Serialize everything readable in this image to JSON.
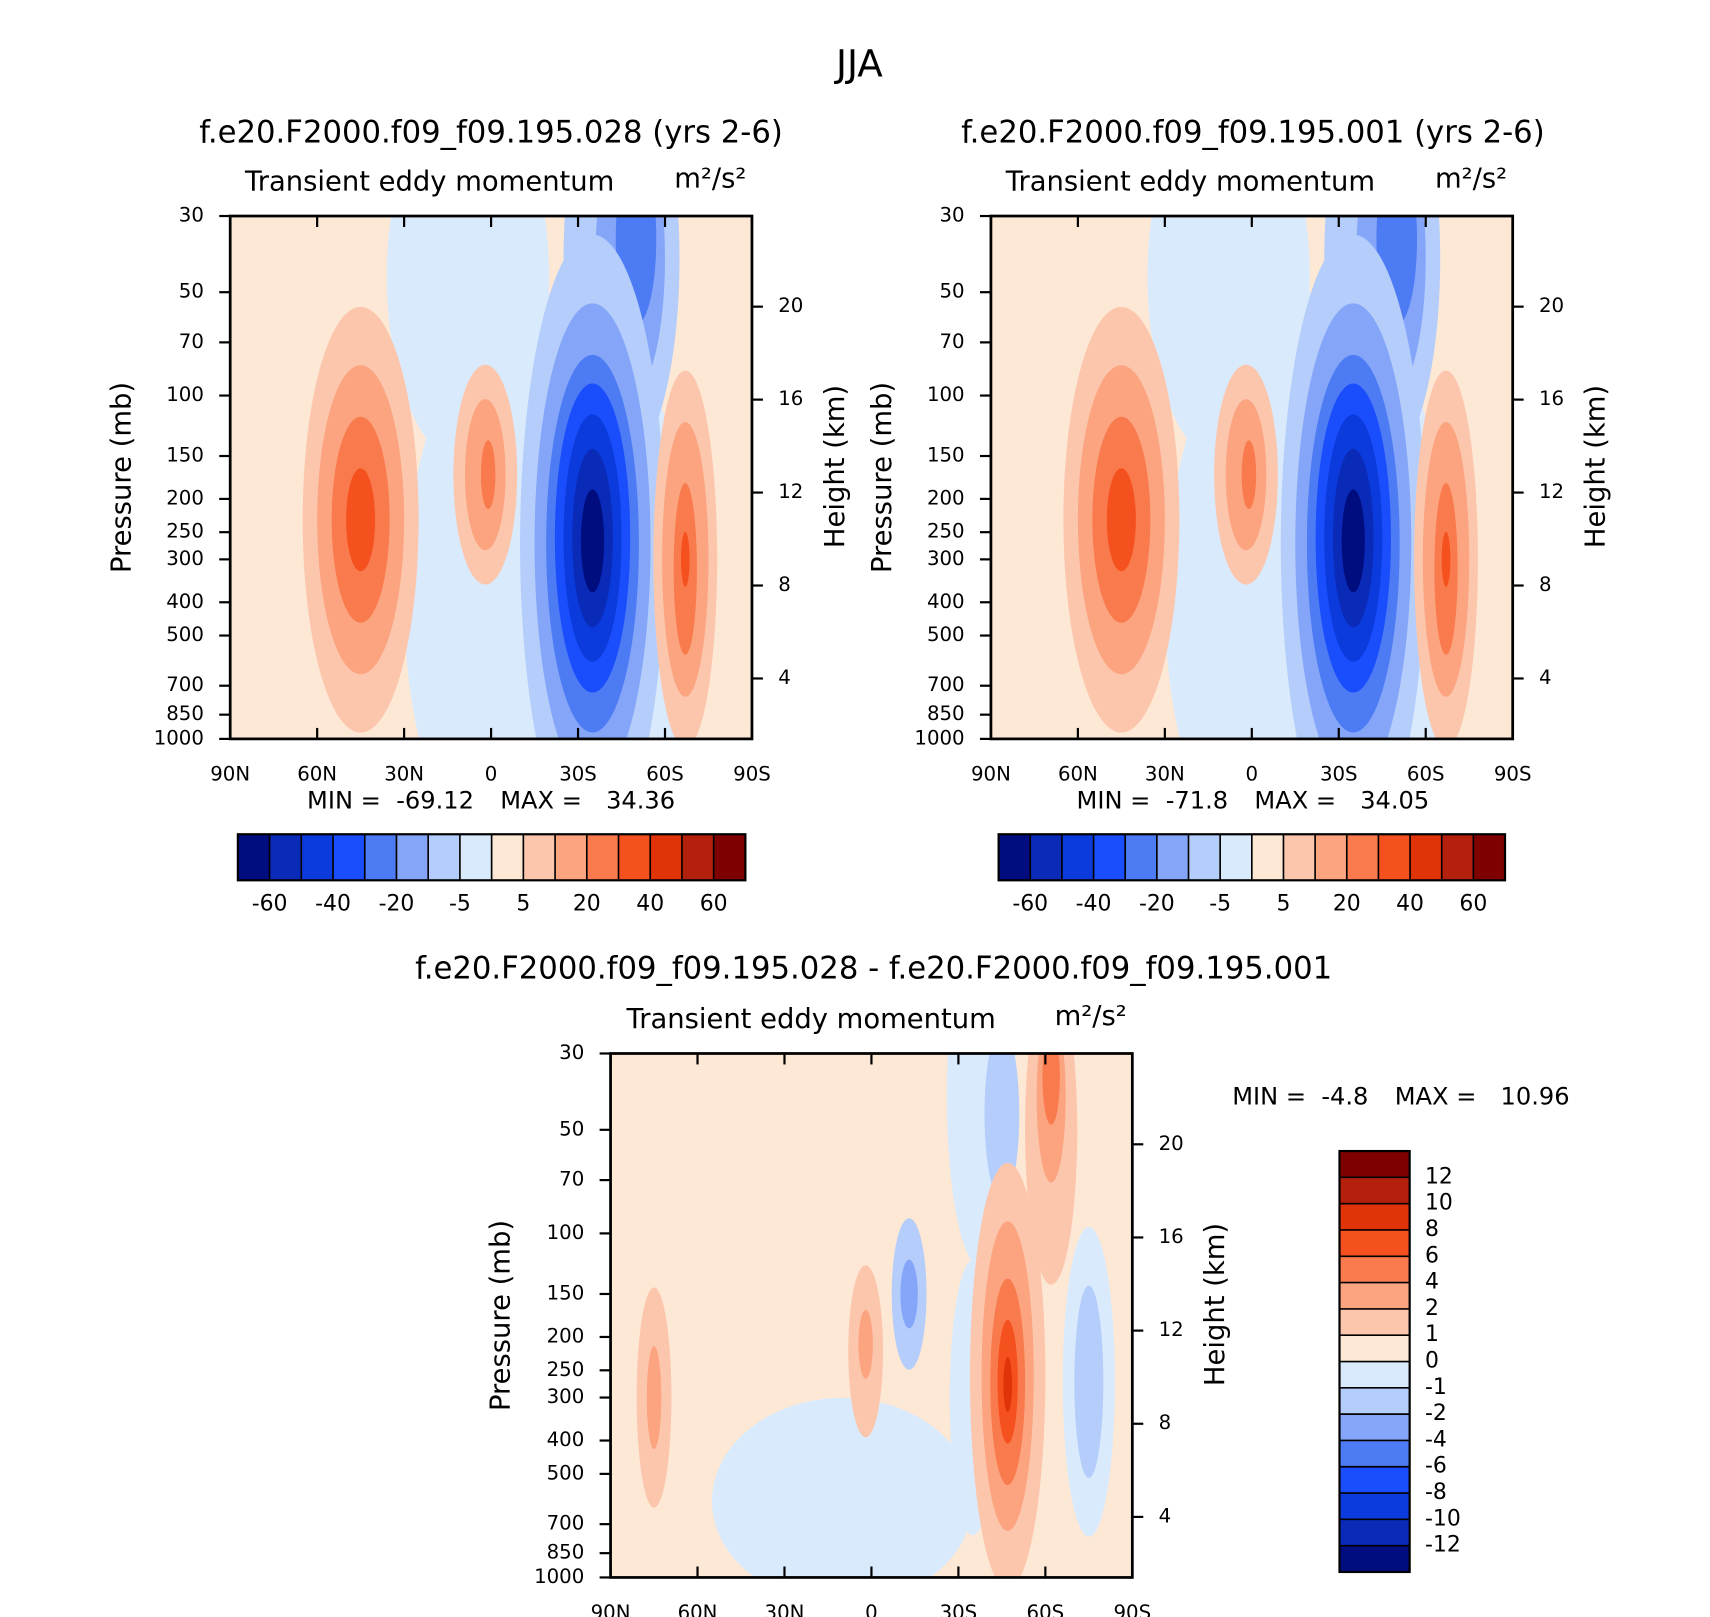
{
  "title": "JJA",
  "chart_data": [
    {
      "type": "contour",
      "title": "f.e20.F2000.f09_f09.195.028 (yrs 2-6)",
      "subtitle": "Transient eddy momentum",
      "units": "m²/s²",
      "ylabel": "Pressure (mb)",
      "y2label": "Height (km)",
      "xlim": [
        90,
        -90
      ],
      "xticks": [
        {
          "value": 90,
          "label": "90N"
        },
        {
          "value": 60,
          "label": "60N"
        },
        {
          "value": 30,
          "label": "30N"
        },
        0,
        {
          "value": -30,
          "label": "30S"
        },
        {
          "value": -60,
          "label": "60S"
        },
        {
          "value": -90,
          "label": "90S"
        }
      ],
      "ylim": [
        1000,
        30
      ],
      "ylog": true,
      "yticks": [
        30,
        50,
        70,
        100,
        150,
        200,
        250,
        300,
        400,
        500,
        700,
        850,
        1000
      ],
      "y2lim": [
        1.4,
        23.9
      ],
      "y2ticks": [
        4,
        8,
        12,
        16,
        20
      ],
      "min_label": "MIN =",
      "min": -69.12,
      "max_label": "MAX =",
      "max": 34.36,
      "colorbar": {
        "orientation": "horizontal",
        "colors": [
          "#000d7e",
          "#0a2ab8",
          "#0b3bdc",
          "#1a4dfc",
          "#4d7bf3",
          "#85a6f8",
          "#b4cdfb",
          "#d9eafc",
          "#fde8d5",
          "#fcc6ad",
          "#fba47f",
          "#f97a4d",
          "#f5511f",
          "#e03308",
          "#b3200c",
          "#7f0000"
        ],
        "levels": [
          -60,
          -50,
          -40,
          -30,
          -20,
          -10,
          -5,
          0,
          5,
          10,
          20,
          30,
          40,
          50,
          60
        ],
        "ticks": [
          -60,
          -40,
          -20,
          -5,
          5,
          20,
          40,
          60
        ]
      }
    },
    {
      "type": "contour",
      "title": "f.e20.F2000.f09_f09.195.001 (yrs 2-6)",
      "subtitle": "Transient eddy momentum",
      "units": "m²/s²",
      "ylabel": "Pressure (mb)",
      "y2label": "Height (km)",
      "xlim": [
        90,
        -90
      ],
      "xticks": [
        {
          "value": 90,
          "label": "90N"
        },
        {
          "value": 60,
          "label": "60N"
        },
        {
          "value": 30,
          "label": "30N"
        },
        0,
        {
          "value": -30,
          "label": "30S"
        },
        {
          "value": -60,
          "label": "60S"
        },
        {
          "value": -90,
          "label": "90S"
        }
      ],
      "ylim": [
        1000,
        30
      ],
      "ylog": true,
      "yticks": [
        30,
        50,
        70,
        100,
        150,
        200,
        250,
        300,
        400,
        500,
        700,
        850,
        1000
      ],
      "y2lim": [
        1.4,
        23.9
      ],
      "y2ticks": [
        4,
        8,
        12,
        16,
        20
      ],
      "min_label": "MIN =",
      "min": -71.8,
      "max_label": "MAX =",
      "max": 34.05,
      "colorbar": {
        "orientation": "horizontal",
        "colors": [
          "#000d7e",
          "#0a2ab8",
          "#0b3bdc",
          "#1a4dfc",
          "#4d7bf3",
          "#85a6f8",
          "#b4cdfb",
          "#d9eafc",
          "#fde8d5",
          "#fcc6ad",
          "#fba47f",
          "#f97a4d",
          "#f5511f",
          "#e03308",
          "#b3200c",
          "#7f0000"
        ],
        "levels": [
          -60,
          -50,
          -40,
          -30,
          -20,
          -10,
          -5,
          0,
          5,
          10,
          20,
          30,
          40,
          50,
          60
        ],
        "ticks": [
          -60,
          -40,
          -20,
          -5,
          5,
          20,
          40,
          60
        ]
      }
    },
    {
      "type": "contour",
      "title": "f.e20.F2000.f09_f09.195.028 - f.e20.F2000.f09_f09.195.001",
      "subtitle": "Transient eddy momentum",
      "units": "m²/s²",
      "ylabel": "Pressure (mb)",
      "y2label": "Height (km)",
      "xlim": [
        90,
        -90
      ],
      "xticks": [
        {
          "value": 90,
          "label": "90N"
        },
        {
          "value": 60,
          "label": "60N"
        },
        {
          "value": 30,
          "label": "30N"
        },
        0,
        {
          "value": -30,
          "label": "30S"
        },
        {
          "value": -60,
          "label": "60S"
        },
        {
          "value": -90,
          "label": "90S"
        }
      ],
      "ylim": [
        1000,
        30
      ],
      "ylog": true,
      "yticks": [
        30,
        50,
        70,
        100,
        150,
        200,
        250,
        300,
        400,
        500,
        700,
        850,
        1000
      ],
      "y2lim": [
        1.4,
        23.9
      ],
      "y2ticks": [
        4,
        8,
        12,
        16,
        20
      ],
      "min_label": "MIN =",
      "min": -4.8,
      "max_label": "MAX =",
      "max": 10.96,
      "colorbar": {
        "orientation": "vertical",
        "colors": [
          "#7f0000",
          "#b3200c",
          "#e03308",
          "#f5511f",
          "#f97a4d",
          "#fba47f",
          "#fcc6ad",
          "#fde8d5",
          "#d9eafc",
          "#b4cdfb",
          "#85a6f8",
          "#4d7bf3",
          "#1a4dfc",
          "#0b3bdc",
          "#0a2ab8",
          "#000d7e"
        ],
        "levels": [
          12,
          10,
          8,
          6,
          4,
          2,
          1,
          0,
          -1,
          -2,
          -4,
          -6,
          -8,
          -10,
          -12
        ],
        "ticks": [
          12,
          10,
          8,
          6,
          4,
          2,
          1,
          0,
          -1,
          -2,
          -4,
          -6,
          -8,
          -10,
          -12
        ]
      }
    }
  ]
}
